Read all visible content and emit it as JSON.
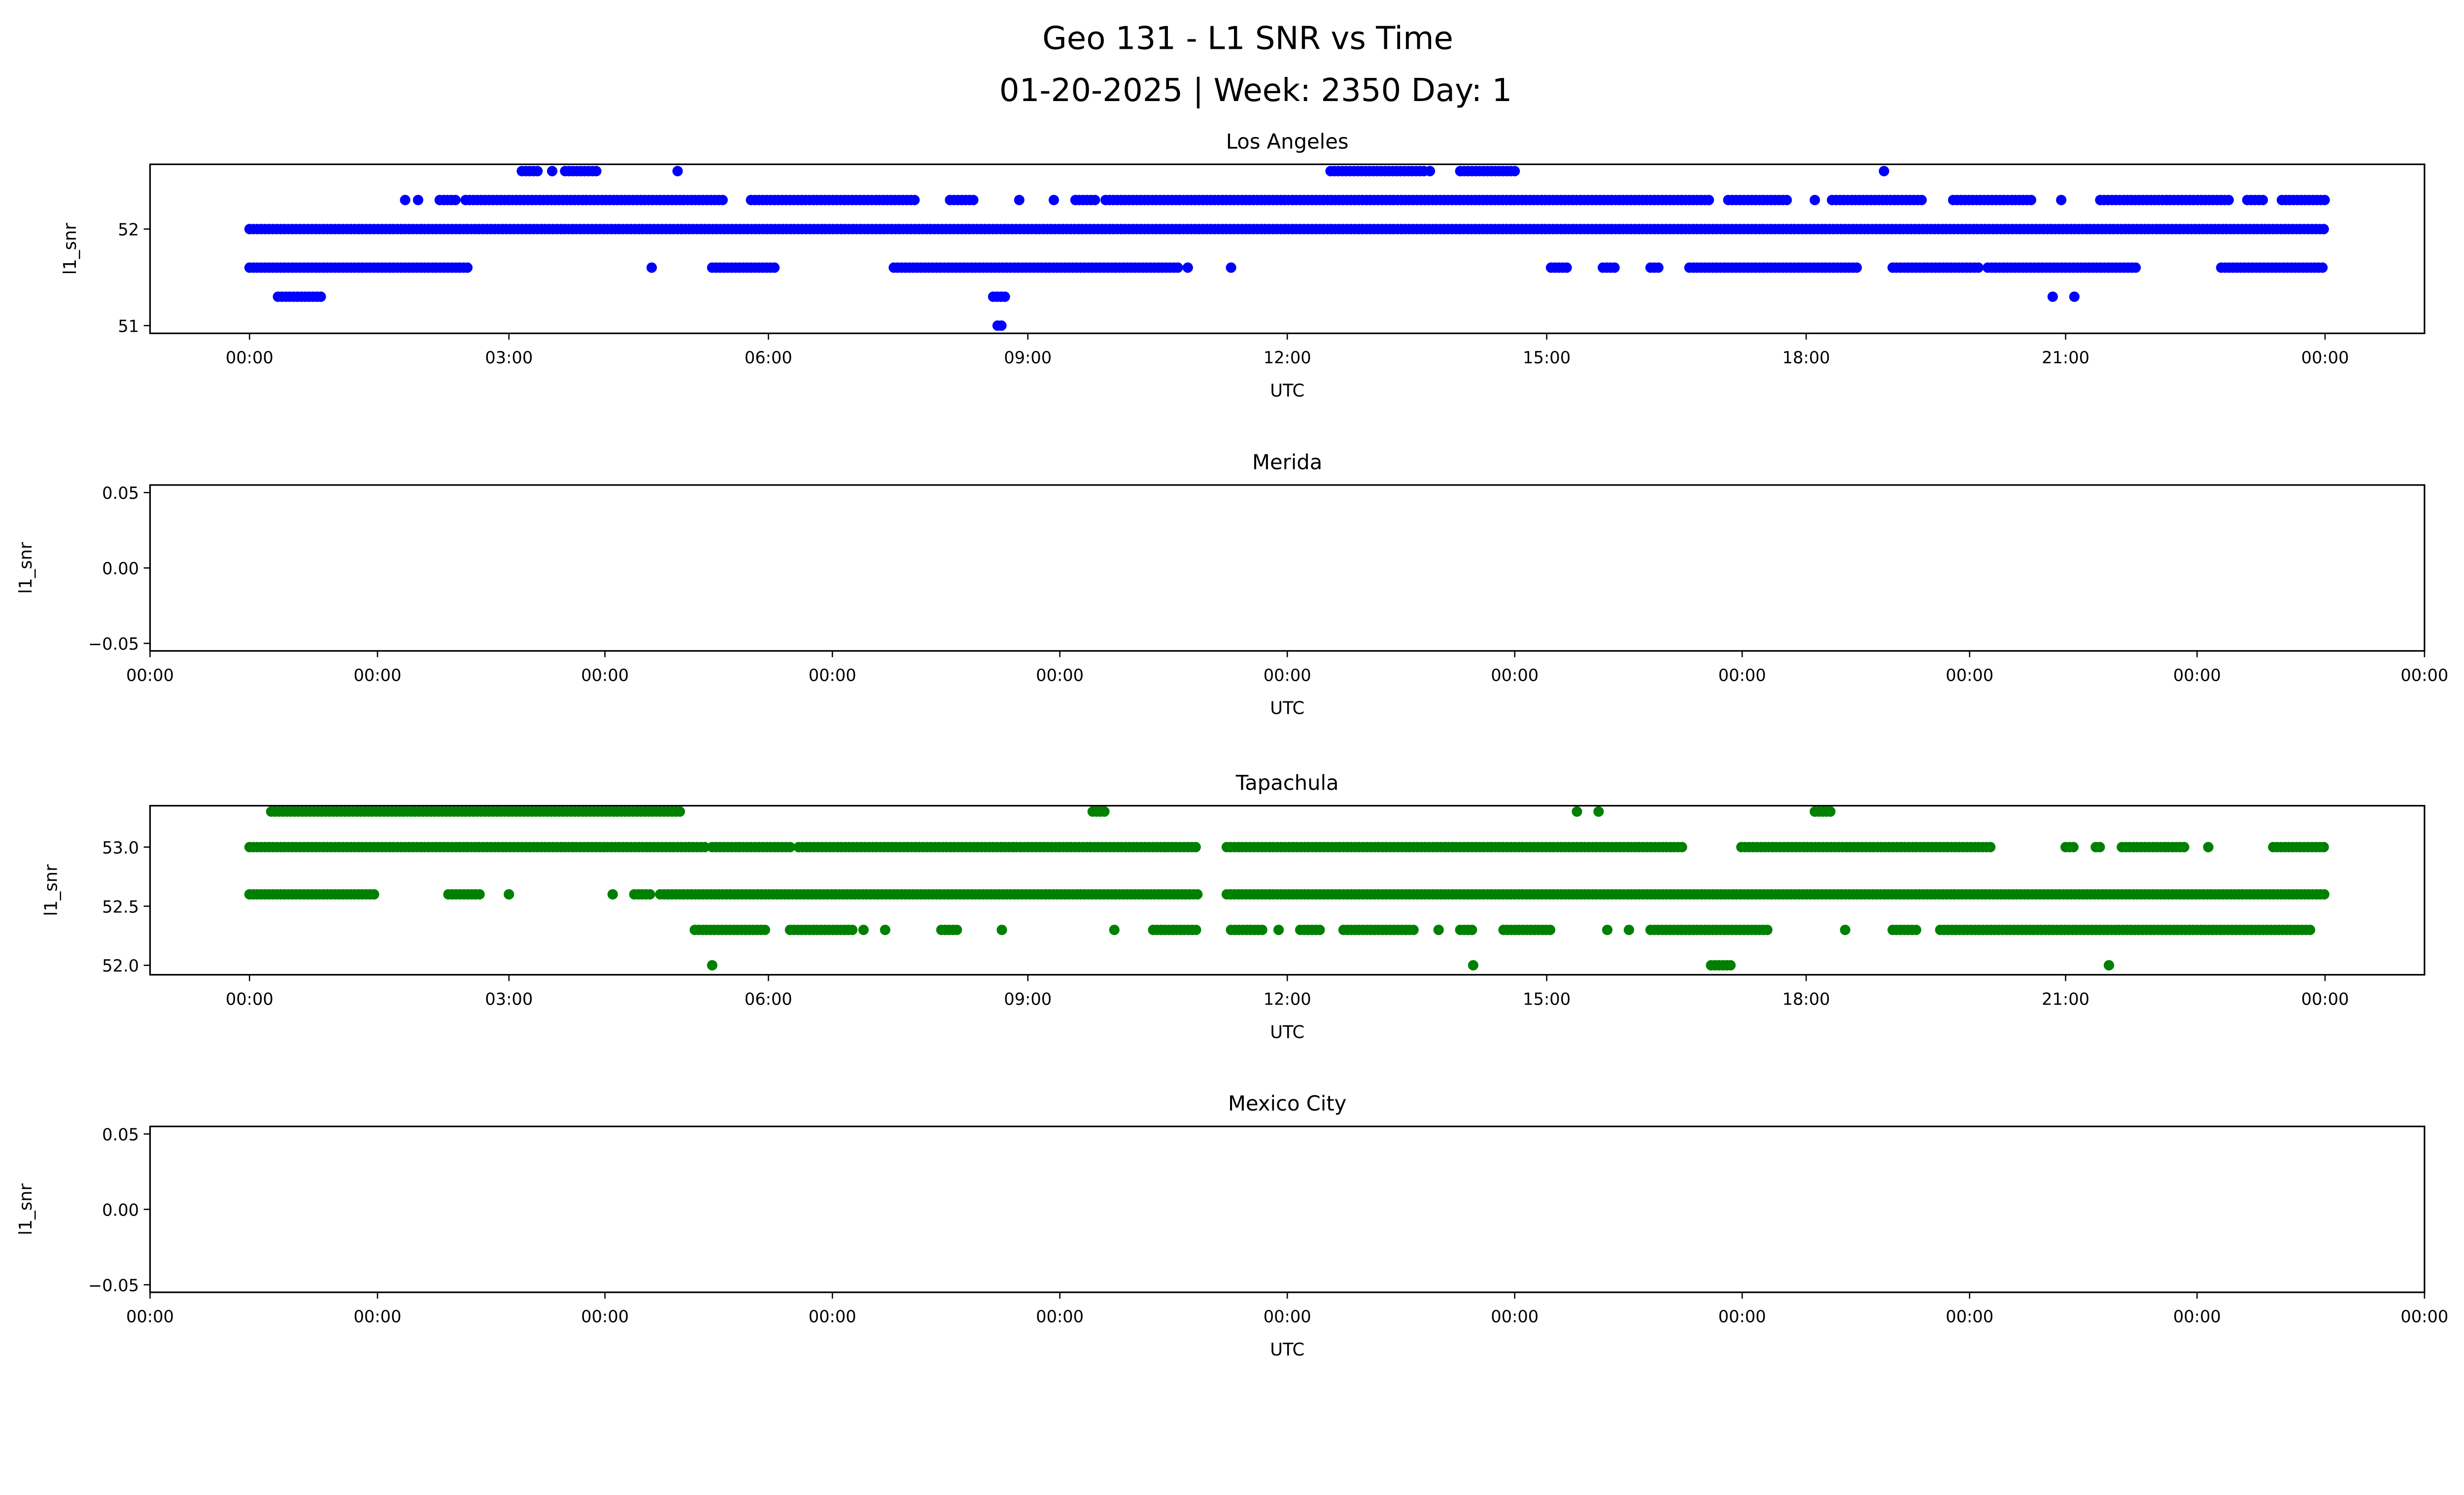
{
  "title_line1": "Geo 131 - L1 SNR vs Time",
  "title_line2": "01-20-2025 | Week: 2350 Day: 1",
  "chart_data": [
    {
      "type": "scatter",
      "title": "Los Angeles",
      "xlabel": "UTC",
      "ylabel": "l1_snr",
      "color": "#0000ff",
      "x_unit": "hours UTC",
      "xlim": [
        -1.15,
        25.15
      ],
      "xticks": [
        0,
        3,
        6,
        9,
        12,
        15,
        18,
        21,
        24
      ],
      "xtick_labels": [
        "00:00",
        "03:00",
        "06:00",
        "09:00",
        "12:00",
        "15:00",
        "18:00",
        "21:00",
        "00:00"
      ],
      "ylim": [
        50.92,
        52.67
      ],
      "yticks": [
        51,
        52
      ],
      "ytick_labels": [
        "51",
        "52"
      ],
      "runs": [
        {
          "y": 52.6,
          "ranges": [
            [
              3.15,
              3.33
            ],
            [
              3.5,
              3.5
            ],
            [
              3.65,
              4.05
            ],
            [
              4.95,
              4.95
            ],
            [
              12.5,
              13.6
            ],
            [
              13.65,
              13.65
            ],
            [
              14.0,
              14.65
            ],
            [
              18.9,
              18.9
            ]
          ]
        },
        {
          "y": 52.3,
          "ranges": [
            [
              1.8,
              1.8
            ],
            [
              1.95,
              1.95
            ],
            [
              2.2,
              2.4
            ],
            [
              2.5,
              5.5
            ],
            [
              5.8,
              7.7
            ],
            [
              8.1,
              8.4
            ],
            [
              8.9,
              8.9
            ],
            [
              9.3,
              9.3
            ],
            [
              9.55,
              9.8
            ],
            [
              9.9,
              16.9
            ],
            [
              17.1,
              17.8
            ],
            [
              18.1,
              18.1
            ],
            [
              18.3,
              19.35
            ],
            [
              19.7,
              20.6
            ],
            [
              20.95,
              20.95
            ],
            [
              21.4,
              22.9
            ],
            [
              23.1,
              23.3
            ],
            [
              23.5,
              24.0
            ]
          ]
        },
        {
          "y": 52.0,
          "ranges": [
            [
              0.0,
              24.0
            ]
          ]
        },
        {
          "y": 51.6,
          "ranges": [
            [
              0.0,
              2.55
            ],
            [
              4.65,
              4.65
            ],
            [
              5.35,
              6.1
            ],
            [
              7.45,
              10.75
            ],
            [
              10.85,
              10.85
            ],
            [
              11.35,
              11.35
            ],
            [
              15.05,
              15.25
            ],
            [
              15.65,
              15.8
            ],
            [
              16.2,
              16.3
            ],
            [
              16.65,
              18.6
            ],
            [
              19.0,
              20.0
            ],
            [
              20.1,
              21.85
            ],
            [
              22.8,
              24.0
            ]
          ]
        },
        {
          "y": 51.3,
          "ranges": [
            [
              0.33,
              0.86
            ],
            [
              8.6,
              8.75
            ],
            [
              20.85,
              20.85
            ],
            [
              21.1,
              21.1
            ]
          ]
        },
        {
          "y": 51.0,
          "ranges": [
            [
              8.65,
              8.7
            ]
          ]
        }
      ]
    },
    {
      "type": "scatter",
      "title": "Merida",
      "xlabel": "UTC",
      "ylabel": "l1_snr",
      "color": "#0000ff",
      "xlim": [
        0,
        10
      ],
      "xticks": [
        0,
        1,
        2,
        3,
        4,
        5,
        6,
        7,
        8,
        9,
        10
      ],
      "xtick_labels": [
        "00:00",
        "00:00",
        "00:00",
        "00:00",
        "00:00",
        "00:00",
        "00:00",
        "00:00",
        "00:00",
        "00:00",
        "00:00"
      ],
      "ylim": [
        -0.055,
        0.055
      ],
      "yticks": [
        0.05,
        0.0,
        -0.05
      ],
      "ytick_labels": [
        "0.05",
        "0.00",
        "−0.05"
      ],
      "runs": []
    },
    {
      "type": "scatter",
      "title": "Tapachula",
      "xlabel": "UTC",
      "ylabel": "l1_snr",
      "color": "#008000",
      "x_unit": "hours UTC",
      "xlim": [
        -1.15,
        25.15
      ],
      "xticks": [
        0,
        3,
        6,
        9,
        12,
        15,
        18,
        21,
        24
      ],
      "xtick_labels": [
        "00:00",
        "03:00",
        "06:00",
        "09:00",
        "12:00",
        "15:00",
        "18:00",
        "21:00",
        "00:00"
      ],
      "ylim": [
        51.92,
        53.35
      ],
      "yticks": [
        52.0,
        52.5,
        53.0
      ],
      "ytick_labels": [
        "52.0",
        "52.5",
        "53.0"
      ],
      "runs": [
        {
          "y": 53.3,
          "ranges": [
            [
              0.25,
              5.0
            ],
            [
              9.75,
              9.9
            ],
            [
              15.35,
              15.35
            ],
            [
              15.6,
              15.6
            ],
            [
              18.1,
              18.3
            ]
          ]
        },
        {
          "y": 53.0,
          "ranges": [
            [
              0.0,
              5.3
            ],
            [
              5.35,
              6.25
            ],
            [
              6.35,
              10.95
            ],
            [
              11.3,
              16.6
            ],
            [
              17.25,
              20.15
            ],
            [
              21.0,
              21.1
            ],
            [
              21.35,
              21.4
            ],
            [
              21.65,
              22.4
            ],
            [
              22.65,
              22.65
            ],
            [
              23.4,
              24.0
            ]
          ]
        },
        {
          "y": 52.6,
          "ranges": [
            [
              0.0,
              1.45
            ],
            [
              2.3,
              2.7
            ],
            [
              3.0,
              3.0
            ],
            [
              4.2,
              4.2
            ],
            [
              4.45,
              4.65
            ],
            [
              4.75,
              11.0
            ],
            [
              11.3,
              24.0
            ]
          ]
        },
        {
          "y": 52.3,
          "ranges": [
            [
              5.15,
              6.0
            ],
            [
              6.25,
              7.0
            ],
            [
              7.1,
              7.1
            ],
            [
              7.35,
              7.35
            ],
            [
              8.0,
              8.2
            ],
            [
              8.7,
              8.7
            ],
            [
              10.0,
              10.0
            ],
            [
              10.45,
              10.95
            ],
            [
              11.35,
              11.75
            ],
            [
              11.9,
              11.9
            ],
            [
              12.15,
              12.4
            ],
            [
              12.65,
              13.5
            ],
            [
              13.75,
              13.75
            ],
            [
              14.0,
              14.15
            ],
            [
              14.5,
              15.05
            ],
            [
              15.7,
              15.7
            ],
            [
              15.95,
              15.95
            ],
            [
              16.2,
              17.55
            ],
            [
              18.45,
              18.45
            ],
            [
              19.0,
              19.3
            ],
            [
              19.55,
              23.85
            ]
          ]
        },
        {
          "y": 52.0,
          "ranges": [
            [
              5.35,
              5.35
            ],
            [
              14.15,
              14.15
            ],
            [
              16.9,
              17.15
            ],
            [
              21.5,
              21.5
            ]
          ]
        }
      ]
    },
    {
      "type": "scatter",
      "title": "Mexico City",
      "xlabel": "UTC",
      "ylabel": "l1_snr",
      "color": "#0000ff",
      "xlim": [
        0,
        10
      ],
      "xticks": [
        0,
        1,
        2,
        3,
        4,
        5,
        6,
        7,
        8,
        9,
        10
      ],
      "xtick_labels": [
        "00:00",
        "00:00",
        "00:00",
        "00:00",
        "00:00",
        "00:00",
        "00:00",
        "00:00",
        "00:00",
        "00:00",
        "00:00"
      ],
      "ylim": [
        -0.055,
        0.055
      ],
      "yticks": [
        0.05,
        0.0,
        -0.05
      ],
      "ytick_labels": [
        "0.05",
        "0.00",
        "−0.05"
      ],
      "runs": []
    }
  ]
}
